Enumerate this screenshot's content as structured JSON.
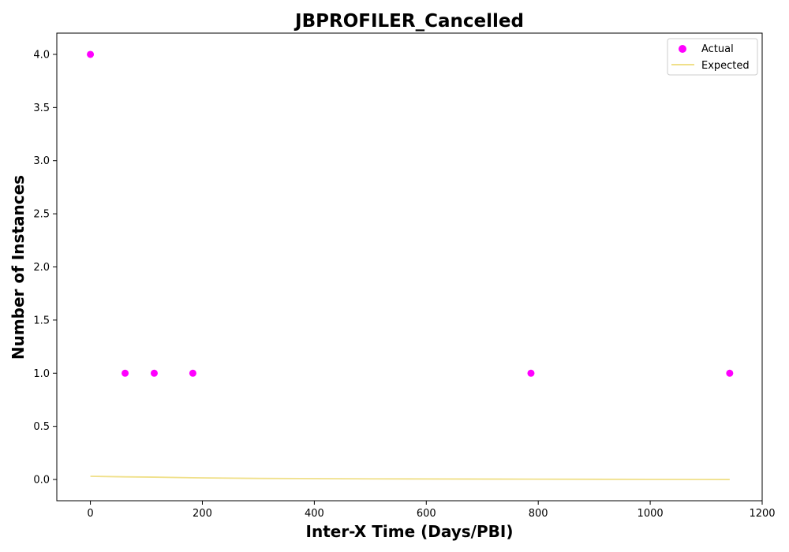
{
  "chart_data": {
    "type": "scatter",
    "title": "JBPROFILER_Cancelled",
    "xlabel": "Inter-X Time (Days/PBI)",
    "ylabel": "Number of Instances",
    "xlim": [
      -60,
      1200
    ],
    "ylim": [
      -0.2,
      4.2
    ],
    "x_ticks": [
      0,
      200,
      400,
      600,
      800,
      1000,
      1200
    ],
    "x_tick_labels": [
      "0",
      "200",
      "400",
      "600",
      "800",
      "1000",
      "1200"
    ],
    "y_ticks": [
      0.0,
      0.5,
      1.0,
      1.5,
      2.0,
      2.5,
      3.0,
      3.5,
      4.0
    ],
    "y_tick_labels": [
      "0.0",
      "0.5",
      "1.0",
      "1.5",
      "2.0",
      "2.5",
      "3.0",
      "3.5",
      "4.0"
    ],
    "grid": false,
    "legend_position": "top-right",
    "series": [
      {
        "name": "Actual",
        "kind": "scatter",
        "color": "#ff00ff",
        "points": [
          {
            "x": 0,
            "y": 4
          },
          {
            "x": 62,
            "y": 1
          },
          {
            "x": 114,
            "y": 1
          },
          {
            "x": 183,
            "y": 1
          },
          {
            "x": 787,
            "y": 1
          },
          {
            "x": 1142,
            "y": 1
          }
        ]
      },
      {
        "name": "Expected",
        "kind": "line",
        "color": "#f0e08a",
        "points": [
          {
            "x": 0,
            "y": 0.03
          },
          {
            "x": 62,
            "y": 0.025
          },
          {
            "x": 114,
            "y": 0.022
          },
          {
            "x": 183,
            "y": 0.016
          },
          {
            "x": 300,
            "y": 0.01
          },
          {
            "x": 500,
            "y": 0.006
          },
          {
            "x": 787,
            "y": 0.003
          },
          {
            "x": 1000,
            "y": 0.001
          },
          {
            "x": 1142,
            "y": 0.0
          }
        ]
      }
    ]
  }
}
